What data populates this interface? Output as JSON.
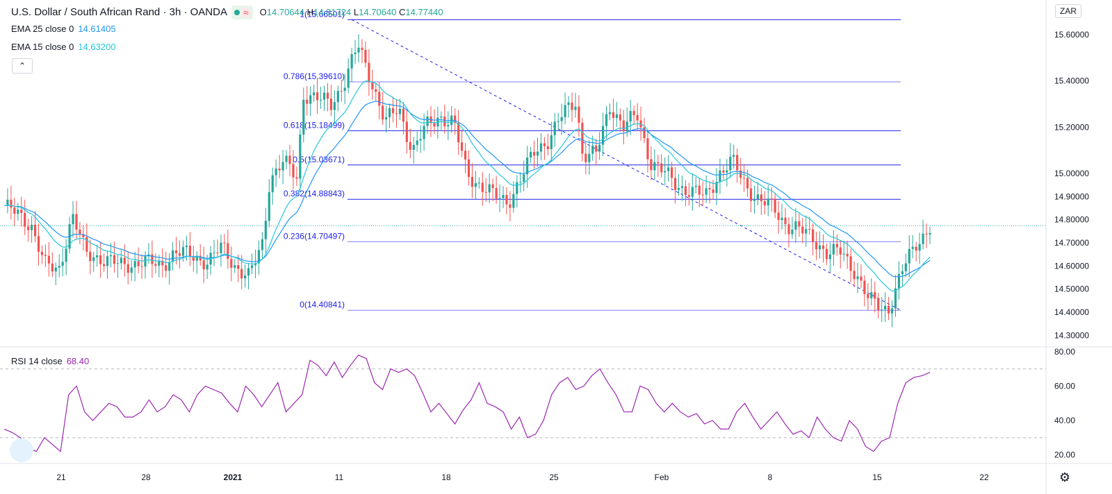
{
  "header": {
    "symbol_title": "U.S. Dollar / South African Rand · 3h · OANDA",
    "ohlc": {
      "o_label": "O",
      "o": "14.70644",
      "h_label": "H",
      "h": "14.81724",
      "l_label": "L",
      "l": "14.70640",
      "c_label": "C",
      "c": "14.77440"
    },
    "currency_badge": "ZAR",
    "collapse_icon": "chevron-up-icon",
    "settings_icon": "gear-icon"
  },
  "indicators": {
    "ema25": {
      "label": "EMA 25 close 0",
      "value": "14.61405",
      "color": "#2196f3"
    },
    "ema15": {
      "label": "EMA 15 close 0",
      "value": "14.63200",
      "color": "#26c6da"
    },
    "rsi": {
      "label": "RSI 14 close",
      "value": "68.40",
      "color": "#9c27b0"
    }
  },
  "colors": {
    "up": "#26a69a",
    "down": "#ef5350",
    "fib": "#1e1ee8",
    "fib_light": "#7e7ef5"
  },
  "chart_data": [
    {
      "type": "candlestick",
      "price_axis": {
        "ylim": [
          14.25,
          15.75
        ],
        "ticks": [
          "15.60000",
          "15.40000",
          "15.20000",
          "15.00000",
          "14.90000",
          "14.80000",
          "14.70000",
          "14.60000",
          "14.50000",
          "14.40000",
          "14.30000"
        ],
        "tick_values": [
          15.6,
          15.4,
          15.2,
          15.0,
          14.9,
          14.8,
          14.7,
          14.6,
          14.5,
          14.4,
          14.3
        ]
      },
      "time_axis": {
        "labels": [
          "21",
          "28",
          "2021",
          "11",
          "18",
          "25",
          "Feb",
          "8",
          "15",
          "22"
        ]
      },
      "current_price": 14.7744,
      "fibonacci": [
        {
          "label": "1(15.66501)",
          "value": 15.66501
        },
        {
          "label": "0.786(15.39610)",
          "value": 15.3961
        },
        {
          "label": "0.618(15.18499)",
          "value": 15.18499
        },
        {
          "label": "0.5(15.03671)",
          "value": 15.03671
        },
        {
          "label": "0.382(14.88843)",
          "value": 14.88843
        },
        {
          "label": "0.236(14.70497)",
          "value": 14.70497
        },
        {
          "label": "0(14.40841)",
          "value": 14.40841
        }
      ],
      "close_path": [
        [
          0,
          14.86
        ],
        [
          0.04,
          14.78
        ],
        [
          0.06,
          14.6
        ],
        [
          0.08,
          14.58
        ],
        [
          0.1,
          14.82
        ],
        [
          0.12,
          14.65
        ],
        [
          0.14,
          14.64
        ],
        [
          0.17,
          14.6
        ],
        [
          0.2,
          14.62
        ],
        [
          0.23,
          14.6
        ],
        [
          0.25,
          14.66
        ],
        [
          0.28,
          14.64
        ],
        [
          0.3,
          14.62
        ],
        [
          0.32,
          14.68
        ],
        [
          0.34,
          14.6
        ],
        [
          0.36,
          14.55
        ],
        [
          0.38,
          14.7
        ],
        [
          0.39,
          14.98
        ],
        [
          0.41,
          15.05
        ],
        [
          0.43,
          14.98
        ],
        [
          0.44,
          15.35
        ],
        [
          0.46,
          15.32
        ],
        [
          0.48,
          15.3
        ],
        [
          0.5,
          15.4
        ],
        [
          0.52,
          15.55
        ],
        [
          0.54,
          15.4
        ],
        [
          0.56,
          15.22
        ],
        [
          0.58,
          15.28
        ],
        [
          0.6,
          15.1
        ],
        [
          0.62,
          15.2
        ],
        [
          0.64,
          15.25
        ],
        [
          0.66,
          15.22
        ],
        [
          0.68,
          15.0
        ],
        [
          0.7,
          14.95
        ],
        [
          0.72,
          14.9
        ],
        [
          0.74,
          14.88
        ],
        [
          0.76,
          14.98
        ],
        [
          0.78,
          15.1
        ],
        [
          0.8,
          15.15
        ],
        [
          0.82,
          15.25
        ],
        [
          0.84,
          15.32
        ],
        [
          0.85,
          15.08
        ],
        [
          0.87,
          15.08
        ],
        [
          0.89,
          15.3
        ],
        [
          0.91,
          15.2
        ],
        [
          0.93,
          15.25
        ],
        [
          0.95,
          15.05
        ],
        [
          0.97,
          15.0
        ],
        [
          0.99,
          14.95
        ],
        [
          1.01,
          14.92
        ],
        [
          1.03,
          14.9
        ],
        [
          1.05,
          15.0
        ],
        [
          1.07,
          15.05
        ],
        [
          1.09,
          14.95
        ],
        [
          1.11,
          14.88
        ],
        [
          1.13,
          14.85
        ],
        [
          1.15,
          14.78
        ],
        [
          1.17,
          14.75
        ],
        [
          1.19,
          14.72
        ],
        [
          1.21,
          14.65
        ],
        [
          1.23,
          14.66
        ],
        [
          1.25,
          14.58
        ],
        [
          1.27,
          14.45
        ],
        [
          1.29,
          14.42
        ],
        [
          1.3,
          14.42
        ],
        [
          1.32,
          14.58
        ],
        [
          1.34,
          14.7
        ],
        [
          1.36,
          14.77
        ]
      ]
    },
    {
      "type": "line",
      "series": [
        {
          "name": "RSI 14 close"
        }
      ],
      "ylim": [
        15,
        82
      ],
      "ticks": [
        "80.00",
        "60.00",
        "40.00",
        "20.00"
      ],
      "tick_values": [
        80,
        60,
        40,
        20
      ],
      "bands": [
        70,
        30
      ],
      "values": [
        35,
        33,
        30,
        24,
        22,
        30,
        26,
        22,
        55,
        60,
        45,
        40,
        45,
        50,
        48,
        42,
        42,
        45,
        52,
        45,
        48,
        55,
        52,
        45,
        55,
        60,
        58,
        56,
        50,
        45,
        60,
        55,
        48,
        55,
        62,
        45,
        50,
        55,
        75,
        72,
        66,
        74,
        65,
        72,
        78,
        76,
        62,
        58,
        70,
        68,
        70,
        66,
        56,
        45,
        50,
        44,
        38,
        46,
        52,
        62,
        50,
        48,
        45,
        35,
        42,
        30,
        32,
        40,
        55,
        62,
        65,
        58,
        60,
        66,
        70,
        62,
        55,
        45,
        45,
        60,
        58,
        50,
        45,
        50,
        45,
        42,
        44,
        38,
        40,
        35,
        35,
        45,
        50,
        42,
        35,
        40,
        45,
        38,
        32,
        34,
        30,
        42,
        35,
        30,
        28,
        40,
        35,
        25,
        22,
        28,
        30,
        50,
        62,
        65,
        66,
        68
      ]
    }
  ]
}
